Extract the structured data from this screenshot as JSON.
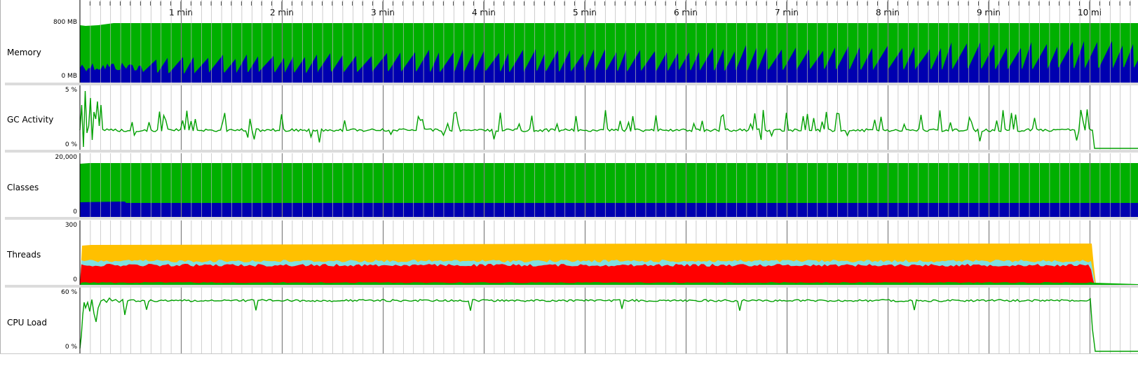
{
  "timeline": {
    "ticks": [
      "1 min",
      "2 min",
      "3 min",
      "4 min",
      "5 min",
      "6 min",
      "7 min",
      "8 min",
      "9 min",
      "10 mi"
    ]
  },
  "panels": {
    "memory": {
      "label": "Memory",
      "ymax": "800 MB",
      "ymin": "0 MB"
    },
    "gc": {
      "label": "GC Activity",
      "ymax": "5 %",
      "ymin": "0 %"
    },
    "classes": {
      "label": "Classes",
      "ymax": "20,000",
      "ymin": "0"
    },
    "threads": {
      "label": "Threads",
      "ymax": "300",
      "ymin": "0"
    },
    "cpu": {
      "label": "CPU Load",
      "ymax": "60 %",
      "ymin": "0 %"
    }
  },
  "colors": {
    "green": "#00b000",
    "blue": "#0000b0",
    "red": "#ff0000",
    "yellow": "#ffc000",
    "cyan": "#80e0e0",
    "line_green": "#00a000",
    "grid": "#a0a0a0",
    "separator": "#dcdcdc"
  }
}
